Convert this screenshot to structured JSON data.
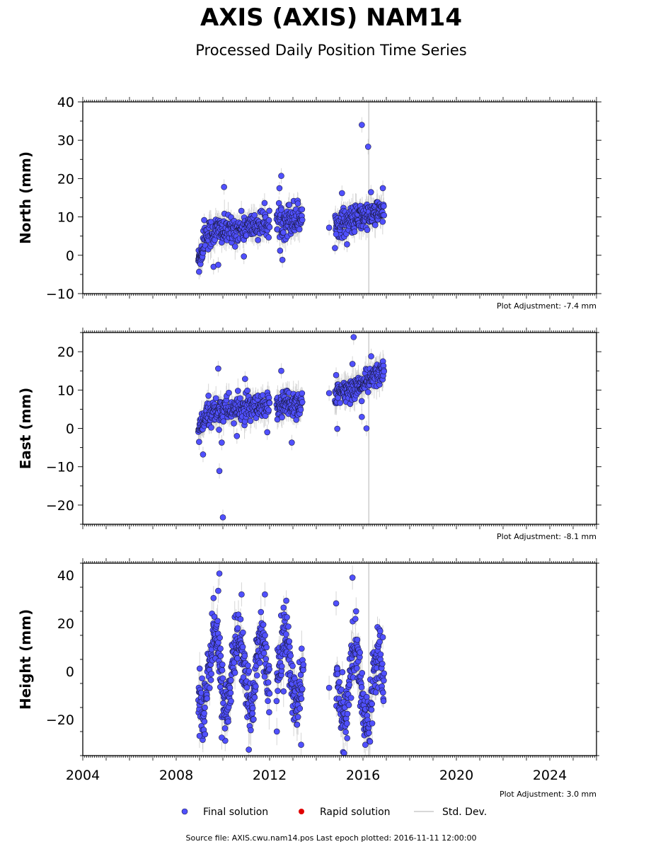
{
  "title": "AXIS (AXIS) NAM14",
  "subtitle": "Processed Daily Position Time Series",
  "footer": {
    "source_label": "Source file:",
    "source_file": "AXIS.cwu.nam14.pos",
    "last_epoch_label": "Last epoch plotted:",
    "last_epoch": "2016-11-11 12:00:00"
  },
  "legend": {
    "final": "Final solution",
    "rapid": "Rapid solution",
    "std": "Std. Dev."
  },
  "colors": {
    "final": "#5050ff",
    "rapid": "#e00000",
    "std": "#cccccc",
    "marker_edge": "#1a1a40"
  },
  "chart_data": [
    {
      "type": "scatter",
      "ylabel": "North (mm)",
      "adjustment": "Plot Adjustment: -7.4 mm",
      "xlim": [
        2004,
        2026
      ],
      "ylim": [
        -10,
        40
      ],
      "yticks": [
        -10,
        0,
        10,
        20,
        30,
        40
      ],
      "xticks": [
        2004,
        2008,
        2012,
        2016,
        2020,
        2024
      ],
      "show_xtick_labels": false,
      "vline": 2016.25,
      "clusters": [
        {
          "start": 2008.95,
          "end": 2009.15,
          "y0": -1.0,
          "y1": 1.5,
          "sd": 1.5,
          "n": 30
        },
        {
          "start": 2009.15,
          "end": 2010.0,
          "y0": 5.0,
          "y1": 7.0,
          "sd": 2.0,
          "n": 70
        },
        {
          "start": 2010.0,
          "end": 2012.0,
          "y0": 6.0,
          "y1": 8.5,
          "sd": 1.8,
          "n": 150
        },
        {
          "start": 2012.3,
          "end": 2013.4,
          "y0": 9.0,
          "y1": 10.0,
          "sd": 2.2,
          "n": 100
        },
        {
          "start": 2014.8,
          "end": 2016.0,
          "y0": 8.0,
          "y1": 10.0,
          "sd": 1.8,
          "n": 110
        },
        {
          "start": 2016.0,
          "end": 2016.9,
          "y0": 10.0,
          "y1": 11.5,
          "sd": 1.8,
          "n": 80
        }
      ],
      "outliers": [
        {
          "x": 2008.98,
          "y": -4.3
        },
        {
          "x": 2009.6,
          "y": -3.0
        },
        {
          "x": 2009.8,
          "y": -2.5
        },
        {
          "x": 2010.05,
          "y": 17.8
        },
        {
          "x": 2010.9,
          "y": -0.3
        },
        {
          "x": 2012.5,
          "y": 20.7
        },
        {
          "x": 2012.55,
          "y": -1.2
        },
        {
          "x": 2012.45,
          "y": 1.2
        },
        {
          "x": 2014.55,
          "y": 7.2
        },
        {
          "x": 2015.1,
          "y": 16.2
        },
        {
          "x": 2015.95,
          "y": 34.0
        },
        {
          "x": 2016.22,
          "y": 28.3
        },
        {
          "x": 2016.85,
          "y": 17.5
        },
        {
          "x": 2014.85,
          "y": 5.5
        }
      ]
    },
    {
      "type": "scatter",
      "ylabel": "East (mm)",
      "adjustment": "Plot Adjustment: -8.1 mm",
      "xlim": [
        2004,
        2026
      ],
      "ylim": [
        -25,
        25
      ],
      "yticks": [
        -20,
        -10,
        0,
        10,
        20
      ],
      "xticks": [
        2004,
        2008,
        2012,
        2016,
        2020,
        2024
      ],
      "show_xtick_labels": false,
      "vline": 2016.25,
      "clusters": [
        {
          "start": 2008.95,
          "end": 2009.3,
          "y0": -1.0,
          "y1": 3.0,
          "sd": 1.5,
          "n": 35
        },
        {
          "start": 2009.3,
          "end": 2010.0,
          "y0": 4.0,
          "y1": 5.0,
          "sd": 1.8,
          "n": 60
        },
        {
          "start": 2010.0,
          "end": 2012.0,
          "y0": 5.0,
          "y1": 5.0,
          "sd": 1.8,
          "n": 150
        },
        {
          "start": 2012.3,
          "end": 2013.4,
          "y0": 6.5,
          "y1": 6.5,
          "sd": 2.0,
          "n": 100
        },
        {
          "start": 2014.8,
          "end": 2016.0,
          "y0": 8.5,
          "y1": 11.5,
          "sd": 1.5,
          "n": 110
        },
        {
          "start": 2016.0,
          "end": 2016.9,
          "y0": 11.5,
          "y1": 15.0,
          "sd": 1.5,
          "n": 80
        }
      ],
      "outliers": [
        {
          "x": 2009.15,
          "y": -6.8
        },
        {
          "x": 2009.85,
          "y": -11.1
        },
        {
          "x": 2010.0,
          "y": -23.2
        },
        {
          "x": 2009.95,
          "y": -3.7
        },
        {
          "x": 2009.8,
          "y": 15.6
        },
        {
          "x": 2010.6,
          "y": -2.0
        },
        {
          "x": 2010.95,
          "y": 12.9
        },
        {
          "x": 2011.9,
          "y": -1.0
        },
        {
          "x": 2012.5,
          "y": 15.0
        },
        {
          "x": 2012.95,
          "y": -3.7
        },
        {
          "x": 2014.55,
          "y": 9.2
        },
        {
          "x": 2014.9,
          "y": -0.1
        },
        {
          "x": 2015.6,
          "y": 23.8
        },
        {
          "x": 2015.55,
          "y": 16.8
        },
        {
          "x": 2016.15,
          "y": 0.0
        },
        {
          "x": 2016.35,
          "y": 18.8
        },
        {
          "x": 2015.95,
          "y": 3.0
        },
        {
          "x": 2014.85,
          "y": 13.9
        }
      ]
    },
    {
      "type": "scatter",
      "ylabel": "Height (mm)",
      "adjustment": "Plot Adjustment: 3.0 mm",
      "xlim": [
        2004,
        2026
      ],
      "ylim": [
        -35,
        45
      ],
      "yticks": [
        -20,
        0,
        20,
        40
      ],
      "xticks": [
        2004,
        2008,
        2012,
        2016,
        2020,
        2024
      ],
      "show_xtick_labels": true,
      "vline": 2016.25,
      "seasonal": {
        "amplitude": 15,
        "phase": 0.6,
        "sd": 6
      },
      "clusters": [
        {
          "start": 2008.95,
          "end": 2012.0,
          "y0": 0,
          "y1": 0,
          "sd": 0,
          "n": 330
        },
        {
          "start": 2012.3,
          "end": 2013.45,
          "y0": 0,
          "y1": 0,
          "sd": 0,
          "n": 120
        },
        {
          "start": 2014.85,
          "end": 2016.9,
          "y0": -5,
          "y1": -6,
          "sd": 0,
          "n": 200
        }
      ],
      "outliers": [
        {
          "x": 2009.85,
          "y": 40.7
        },
        {
          "x": 2009.8,
          "y": 33.5
        },
        {
          "x": 2009.6,
          "y": 30.5
        },
        {
          "x": 2009.95,
          "y": -27.5
        },
        {
          "x": 2009.0,
          "y": -26.8
        },
        {
          "x": 2010.8,
          "y": 32.0
        },
        {
          "x": 2011.8,
          "y": 32.0
        },
        {
          "x": 2012.6,
          "y": 26.5
        },
        {
          "x": 2015.55,
          "y": 39.0
        },
        {
          "x": 2014.85,
          "y": 28.3
        },
        {
          "x": 2014.55,
          "y": -6.8
        },
        {
          "x": 2016.1,
          "y": -30.5
        },
        {
          "x": 2013.35,
          "y": -30.5
        },
        {
          "x": 2016.85,
          "y": 14.2
        }
      ]
    }
  ]
}
